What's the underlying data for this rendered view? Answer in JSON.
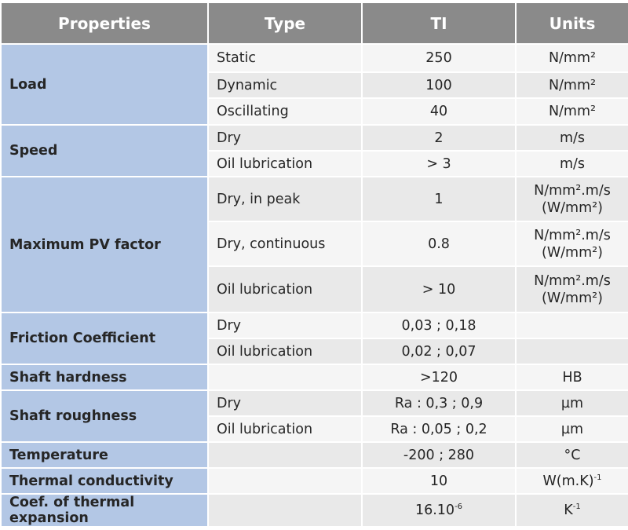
{
  "headers": [
    "Properties",
    "Type",
    "TI",
    "Units"
  ],
  "load": {
    "label": "Load",
    "static": "Static",
    "static_ti": "250",
    "static_unit": "N/mm²",
    "dynamic": "Dynamic",
    "dynamic_ti": "100",
    "dynamic_unit": "N/mm²",
    "oscillating": "Oscillating",
    "oscillating_ti": "40",
    "oscillating_unit": "N/mm²"
  },
  "speed": {
    "label": "Speed",
    "dry": "Dry",
    "dry_ti": "2",
    "dry_unit": "m/s",
    "oil": "Oil lubrication",
    "oil_ti": "> 3",
    "oil_unit": "m/s"
  },
  "pv": {
    "label": "Maximum PV factor",
    "peak": "Dry, in peak",
    "peak_ti": "1",
    "cont": "Dry, continuous",
    "cont_ti": "0.8",
    "oil": "Oil lubrication",
    "oil_ti": "> 10",
    "unit_line1": "N/mm².m/s",
    "unit_line2": "(W/mm²)"
  },
  "friction": {
    "label": "Friction Coefficient",
    "dry": "Dry",
    "dry_ti": "0,03 ; 0,18",
    "oil": "Oil lubrication",
    "oil_ti": "0,02 ; 0,07"
  },
  "hardness": {
    "label": "Shaft hardness",
    "ti": ">120",
    "unit": "HB"
  },
  "roughness": {
    "label": "Shaft roughness",
    "dry": "Dry",
    "dry_ti": "Ra : 0,3 ; 0,9",
    "dry_unit": "µm",
    "oil": "Oil lubrication",
    "oil_ti": "Ra : 0,05 ; 0,2",
    "oil_unit": "µm"
  },
  "temperature": {
    "label": "Temperature",
    "ti": "-200 ; 280",
    "unit": "°C"
  },
  "conductivity": {
    "label": "Thermal conductivity",
    "ti": "10",
    "unit_base": "W(m.K)",
    "unit_exp": "-1"
  },
  "expansion": {
    "label": "Coef. of thermal expansion",
    "ti_base": "16.10",
    "ti_exp": "-6",
    "unit_base": "K",
    "unit_exp": "-1"
  }
}
